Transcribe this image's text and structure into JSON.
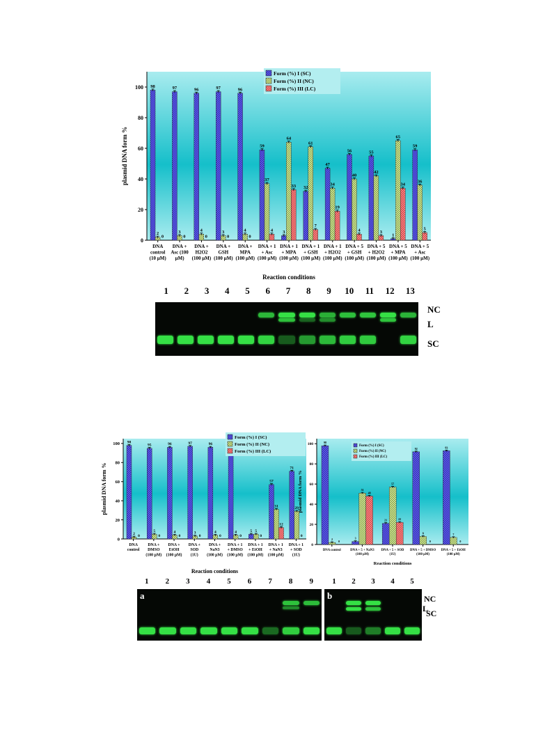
{
  "chart_data": [
    {
      "type": "bar",
      "ylabel": "plasmid DNA form %",
      "xlabel": "Reaction conditions",
      "ylim": [
        0,
        110
      ],
      "yticks": [
        0,
        20,
        40,
        60,
        80,
        100
      ],
      "legend_position": "top-right",
      "categories": [
        [
          "DNA",
          "control",
          "(10 µM)"
        ],
        [
          "DNA +",
          "Asc (100",
          "µM)"
        ],
        [
          "DNA +",
          "H2O2",
          "(100 µM)"
        ],
        [
          "DNA +",
          "GSH",
          "(100 µM)"
        ],
        [
          "DNA +",
          "MPA",
          "(100 µM)"
        ],
        [
          "DNA + 1",
          "+ Asc",
          "(100 µM)"
        ],
        [
          "DNA + 1",
          "+ MPA",
          "(100 µM)"
        ],
        [
          "DNA + 1",
          "+ GSH",
          "(100 µM)"
        ],
        [
          "DNA + 1",
          "+ H2O2",
          "(100 µM)"
        ],
        [
          "DNA + 5",
          "+ GSH",
          "(100 µM)"
        ],
        [
          "DNA + 5",
          "+ H2O2",
          "(100 µM)"
        ],
        [
          "DNA + 5",
          "+ MPA",
          "(100 µM)"
        ],
        [
          "DNA + 5",
          "+ Asc",
          "(100 µM)"
        ]
      ],
      "series": [
        {
          "name": "Form (%) I (SC)",
          "color": "#5b57e6",
          "values": [
            98,
            97,
            96,
            97,
            96,
            59,
            3,
            32,
            47,
            56,
            55,
            1,
            59
          ]
        },
        {
          "name": "Form (%) II (NC)",
          "color": "#c9e89a",
          "values": [
            2,
            3,
            4,
            3,
            4,
            37,
            64,
            61,
            34,
            40,
            42,
            65,
            36
          ]
        },
        {
          "name": "Form (%) III (LC)",
          "color": "#ef7b7b",
          "values": [
            0,
            0,
            0,
            0,
            0,
            4,
            33,
            7,
            19,
            4,
            3,
            34,
            5
          ]
        }
      ]
    },
    {
      "type": "bar",
      "ylabel": "plasmid DNA form %",
      "xlabel": "Reaction conditions",
      "ylim": [
        0,
        105
      ],
      "yticks": [
        0,
        20,
        40,
        60,
        80,
        100
      ],
      "legend_position": "top-right",
      "categories": [
        [
          "DNA",
          "control"
        ],
        [
          "DNA +",
          "DMSO",
          "(100 µM)"
        ],
        [
          "DNA +",
          "EtOH",
          "(100 µM)"
        ],
        [
          "DNA +",
          "SOD",
          "(1U)"
        ],
        [
          "DNA +",
          "NaN3",
          "(100 µM)"
        ],
        [
          "DNA + 1",
          "+ DMSO",
          "(100 µM)"
        ],
        [
          "DNA + 1",
          "+ EtOH",
          "(100 µM)"
        ],
        [
          "DNA + 1",
          "+ NaN3",
          "(100 µM)"
        ],
        [
          "DNA + 1",
          "+ SOD",
          "(1U)"
        ]
      ],
      "series": [
        {
          "name": "Form (%) I (SC)",
          "color": "#5b57e6",
          "values": [
            98,
            95,
            96,
            97,
            96,
            96,
            5,
            57,
            71
          ]
        },
        {
          "name": "Form (%) II (NC)",
          "color": "#c9e89a",
          "values": [
            2,
            5,
            4,
            3,
            4,
            4,
            5,
            31,
            29
          ]
        },
        {
          "name": "Form (%) III (LC)",
          "color": "#ef7b7b",
          "values": [
            0,
            0,
            0,
            0,
            0,
            0,
            0,
            12,
            0
          ]
        }
      ]
    },
    {
      "type": "bar",
      "ylabel": "plasmid DNA form %",
      "xlabel": "Reaction conditions",
      "ylim": [
        0,
        105
      ],
      "yticks": [
        0,
        20,
        40,
        60,
        80,
        100
      ],
      "legend_position": "top-left",
      "categories": [
        [
          "DNA control"
        ],
        [
          "DNA + 5 + NaN3",
          "(100 µM)"
        ],
        [
          "DNA + 5 + SOD",
          "(1U)"
        ],
        [
          "DNA + 5 + DMSO",
          "(100 µM)"
        ],
        [
          "DNA + 5 + EtOH",
          "(100 µM)"
        ]
      ],
      "series": [
        {
          "name": "Form (%) I (SC)",
          "color": "#5b57e6",
          "values": [
            98,
            3,
            21,
            92,
            93
          ]
        },
        {
          "name": "Form (%) II (NC)",
          "color": "#c9e89a",
          "values": [
            2,
            51,
            57,
            8,
            7
          ]
        },
        {
          "name": "Form (%) III (LC)",
          "color": "#ef7b7b",
          "values": [
            0,
            48,
            22,
            0,
            0
          ]
        }
      ]
    }
  ],
  "gel1": {
    "lanes": [
      "1",
      "2",
      "3",
      "4",
      "5",
      "6",
      "7",
      "8",
      "9",
      "10",
      "11",
      "12",
      "13"
    ],
    "labels": {
      "nc": "NC",
      "l": "L",
      "sc": "SC"
    }
  },
  "gel2": {
    "panel_a": {
      "tag": "a",
      "lanes": [
        "1",
        "2",
        "3",
        "4",
        "5",
        "6",
        "7",
        "8",
        "9"
      ]
    },
    "panel_b": {
      "tag": "b",
      "lanes": [
        "1",
        "2",
        "3",
        "4",
        "5"
      ]
    },
    "labels": {
      "nc": "NC",
      "l": "L",
      "sc": "SC"
    }
  },
  "colors": {
    "bg_top": "#9fe6ea",
    "bg_mid": "#17c1cc",
    "band": "#35e045"
  }
}
